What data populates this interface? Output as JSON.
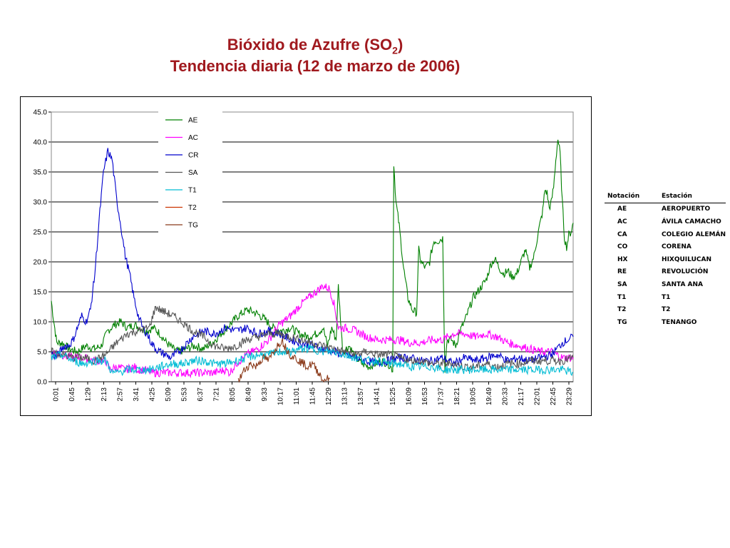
{
  "title": {
    "line1_main": "Bióxido de Azufre (SO",
    "line1_sub": "2",
    "line1_end": ")",
    "line2": "Tendencia diaria (12 de marzo de 2006)"
  },
  "chart_data": {
    "type": "line",
    "ylim": [
      0,
      45
    ],
    "yticks": [
      "0.0",
      "5.0",
      "10.0",
      "15.0",
      "20.0",
      "25.0",
      "30.0",
      "35.0",
      "40.0",
      "45.0"
    ],
    "xticks": [
      "0:01",
      "0:45",
      "1:29",
      "2:13",
      "2:57",
      "3:41",
      "4:25",
      "5:09",
      "5:53",
      "6:37",
      "7:21",
      "8:05",
      "8:49",
      "9:33",
      "10:17",
      "11:01",
      "11:45",
      "12:29",
      "13:13",
      "13:57",
      "14:41",
      "15:25",
      "16:09",
      "16:53",
      "17:37",
      "18:21",
      "19:05",
      "19:49",
      "20:33",
      "21:17",
      "22:01",
      "22:45",
      "23:29"
    ],
    "x_unit": "hours of day",
    "grid": "horizontal",
    "legend_position": "inside-top-left",
    "series": [
      {
        "name": "AE",
        "color": "#008000",
        "x": [
          0.0,
          0.1,
          0.25,
          0.5,
          0.8,
          1.2,
          1.6,
          2.0,
          2.3,
          2.6,
          2.9,
          3.2,
          3.5,
          3.8,
          4.1,
          4.4,
          4.7,
          5.0,
          5.3,
          5.6,
          5.9,
          6.2,
          6.6,
          7.0,
          7.4,
          7.8,
          8.2,
          8.6,
          9.0,
          9.4,
          9.8,
          10.2,
          10.6,
          11.0,
          11.4,
          11.8,
          12.2,
          12.5,
          12.7,
          12.9,
          13.1,
          13.2,
          13.4,
          13.7,
          14.0,
          14.3,
          14.6,
          14.9,
          15.2,
          15.5,
          15.7,
          15.75,
          15.85,
          16.0,
          16.2,
          16.4,
          16.6,
          16.8,
          16.9,
          17.0,
          17.2,
          17.4,
          17.5,
          17.6,
          17.8,
          18.0,
          18.1,
          18.2,
          18.4,
          18.6,
          18.8,
          19.0,
          19.2,
          19.4,
          19.6,
          19.8,
          20.0,
          20.2,
          20.4,
          20.6,
          20.8,
          21.0,
          21.2,
          21.4,
          21.6,
          21.8,
          22.0,
          22.2,
          22.4,
          22.6,
          22.7,
          22.8,
          22.9,
          23.0,
          23.1,
          23.2,
          23.3,
          23.4,
          23.5,
          23.6,
          23.7,
          23.8,
          23.9,
          24.0
        ],
        "y": [
          13.5,
          10.5,
          6.5,
          6.5,
          5.5,
          5.0,
          6.0,
          5.5,
          6.0,
          8.5,
          9.5,
          10.0,
          9.0,
          9.5,
          9.0,
          8.5,
          9.0,
          8.0,
          6.5,
          5.5,
          5.0,
          5.5,
          6.0,
          5.5,
          6.5,
          8.0,
          9.5,
          11.0,
          12.0,
          11.5,
          10.5,
          9.0,
          8.5,
          9.0,
          8.0,
          7.5,
          8.0,
          9.0,
          6.0,
          9.0,
          7.0,
          16.0,
          5.0,
          6.0,
          4.0,
          3.0,
          2.5,
          3.0,
          3.5,
          3.0,
          2.0,
          36.5,
          30.0,
          26.0,
          19.0,
          14.0,
          12.0,
          11.5,
          22.0,
          20.0,
          19.0,
          20.0,
          22.0,
          23.5,
          23.5,
          24.0,
          2.0,
          7.0,
          7.0,
          6.0,
          8.5,
          10.0,
          12.0,
          14.0,
          15.0,
          16.0,
          17.0,
          19.5,
          20.5,
          19.0,
          18.0,
          18.5,
          17.5,
          18.0,
          20.0,
          22.0,
          19.0,
          21.0,
          25.0,
          28.5,
          32.0,
          31.5,
          29.0,
          30.0,
          32.5,
          37.0,
          40.5,
          38.0,
          30.0,
          24.0,
          22.5,
          24.5,
          25.0,
          26.5
        ]
      },
      {
        "name": "AC",
        "color": "#ff00ff",
        "x": [
          0.0,
          0.5,
          1.0,
          1.5,
          2.0,
          2.5,
          2.7,
          3.0,
          3.4,
          3.8,
          4.0,
          4.3,
          4.6,
          5.0,
          5.5,
          6.0,
          6.5,
          7.0,
          7.5,
          8.0,
          8.2,
          8.5,
          9.0,
          9.5,
          10.0,
          10.5,
          11.0,
          11.5,
          12.0,
          12.5,
          12.8,
          13.0,
          13.2,
          13.5,
          14.0,
          14.5,
          15.0,
          15.5,
          16.0,
          16.5,
          17.0,
          17.5,
          18.0,
          18.5,
          19.0,
          19.5,
          20.0,
          20.5,
          21.0,
          21.5,
          22.0,
          22.5,
          23.0,
          23.5,
          24.0
        ],
        "y": [
          5.0,
          4.5,
          4.0,
          4.0,
          3.5,
          3.5,
          2.0,
          2.5,
          2.0,
          2.5,
          2.0,
          2.0,
          1.5,
          1.5,
          1.5,
          1.5,
          1.5,
          1.5,
          1.5,
          2.0,
          1.5,
          3.0,
          4.5,
          5.5,
          7.0,
          9.5,
          11.0,
          13.0,
          14.5,
          16.0,
          15.5,
          13.0,
          9.0,
          9.0,
          8.5,
          7.5,
          7.0,
          7.0,
          7.0,
          6.5,
          6.5,
          7.0,
          7.0,
          8.0,
          8.0,
          7.5,
          8.0,
          7.5,
          6.5,
          6.0,
          5.5,
          5.0,
          5.0,
          4.0,
          4.0
        ]
      },
      {
        "name": "CR",
        "color": "#0000cd",
        "x": [
          0.0,
          0.2,
          0.4,
          0.6,
          0.8,
          1.0,
          1.2,
          1.4,
          1.6,
          1.8,
          2.0,
          2.2,
          2.4,
          2.6,
          2.8,
          3.0,
          3.2,
          3.4,
          3.6,
          3.8,
          4.0,
          4.2,
          4.4,
          4.6,
          4.8,
          5.0,
          5.5,
          6.0,
          6.5,
          7.0,
          7.5,
          8.0,
          8.5,
          9.0,
          9.5,
          10.0,
          10.5,
          11.0,
          11.5,
          12.0,
          12.5,
          13.0,
          13.5,
          14.0,
          14.5,
          15.0,
          15.5,
          16.0,
          16.5,
          17.0,
          17.5,
          18.0,
          18.5,
          19.0,
          19.5,
          20.0,
          20.5,
          21.0,
          21.5,
          22.0,
          22.5,
          23.0,
          23.5,
          24.0
        ],
        "y": [
          5.0,
          4.0,
          5.0,
          6.0,
          6.0,
          7.0,
          9.0,
          11.0,
          10.0,
          12.0,
          18.0,
          27.0,
          35.0,
          38.5,
          37.0,
          30.5,
          26.0,
          21.0,
          18.0,
          14.0,
          11.0,
          9.0,
          8.0,
          6.5,
          5.5,
          5.0,
          4.0,
          5.5,
          7.5,
          8.5,
          8.0,
          9.0,
          8.5,
          9.0,
          8.0,
          8.5,
          8.0,
          7.0,
          6.5,
          6.0,
          5.5,
          5.0,
          4.5,
          4.0,
          3.5,
          3.0,
          3.5,
          4.0,
          4.0,
          3.5,
          3.5,
          4.0,
          3.0,
          4.0,
          3.5,
          4.0,
          4.5,
          3.5,
          4.0,
          3.5,
          4.0,
          4.5,
          6.5,
          7.5
        ]
      },
      {
        "name": "SA",
        "color": "#555555",
        "x": [
          0.0,
          0.5,
          1.0,
          1.5,
          2.0,
          2.5,
          3.0,
          3.5,
          4.0,
          4.5,
          4.8,
          5.0,
          5.3,
          5.6,
          6.0,
          6.5,
          7.0,
          7.5,
          8.0,
          8.5,
          9.0,
          9.5,
          10.0,
          10.5,
          11.0,
          11.5,
          12.0,
          12.5,
          13.0,
          13.5,
          14.0,
          14.5,
          15.0,
          15.5,
          16.0,
          16.5,
          17.0,
          17.5,
          18.0,
          18.5,
          19.0,
          19.5,
          20.0,
          20.5,
          21.0,
          21.5,
          22.0,
          22.5,
          23.0,
          23.5,
          24.0
        ],
        "y": [
          5.0,
          4.5,
          4.0,
          4.0,
          3.5,
          4.5,
          6.5,
          8.0,
          8.5,
          9.0,
          12.5,
          12.0,
          11.5,
          11.0,
          10.0,
          8.5,
          7.5,
          6.0,
          5.5,
          6.0,
          7.0,
          7.5,
          8.0,
          8.0,
          7.5,
          7.0,
          6.5,
          6.0,
          5.5,
          5.0,
          4.5,
          5.0,
          4.5,
          4.5,
          4.0,
          3.5,
          3.5,
          3.0,
          3.0,
          3.0,
          2.5,
          2.5,
          3.0,
          2.5,
          3.0,
          3.0,
          3.5,
          3.5,
          3.5,
          3.5,
          4.0
        ]
      },
      {
        "name": "T1",
        "color": "#00bcd4",
        "x": [
          0.0,
          0.5,
          1.0,
          1.5,
          2.0,
          2.5,
          2.8,
          3.0,
          3.5,
          4.0,
          4.5,
          5.0,
          5.5,
          6.0,
          6.5,
          7.0,
          7.5,
          8.0,
          8.5,
          9.0,
          9.5,
          10.0,
          10.5,
          11.0,
          11.5,
          12.0,
          12.5,
          13.0,
          13.5,
          14.0,
          14.5,
          15.0,
          15.5,
          16.0,
          16.5,
          17.0,
          17.5,
          18.0,
          18.5,
          19.0,
          19.5,
          20.0,
          20.5,
          21.0,
          21.5,
          22.0,
          22.5,
          23.0,
          23.5,
          24.0
        ],
        "y": [
          4.0,
          4.5,
          3.5,
          3.0,
          3.5,
          3.5,
          1.5,
          1.5,
          2.0,
          2.0,
          2.0,
          2.5,
          3.0,
          3.0,
          3.5,
          3.5,
          3.0,
          3.0,
          3.5,
          4.0,
          4.5,
          4.5,
          5.0,
          5.0,
          5.5,
          5.5,
          5.0,
          5.0,
          4.5,
          4.0,
          3.5,
          3.5,
          3.0,
          3.0,
          2.5,
          2.5,
          2.5,
          2.0,
          2.0,
          2.0,
          2.0,
          2.0,
          2.0,
          2.0,
          2.0,
          2.0,
          2.0,
          2.0,
          2.0,
          1.5
        ]
      },
      {
        "name": "T2",
        "color": "#cc3300",
        "x": [],
        "y": []
      },
      {
        "name": "TG",
        "color": "#8b3a1a",
        "x": [
          8.6,
          8.8,
          9.0,
          9.2,
          9.4,
          9.6,
          9.8,
          10.0,
          10.2,
          10.4,
          10.6,
          10.8,
          11.0,
          11.2,
          11.4,
          11.6,
          11.8,
          12.0,
          12.2,
          12.4,
          12.5,
          12.6,
          12.8
        ],
        "y": [
          0.0,
          1.5,
          2.5,
          3.0,
          2.5,
          3.5,
          4.0,
          3.5,
          5.0,
          6.0,
          7.0,
          5.5,
          4.5,
          4.0,
          3.5,
          3.0,
          2.5,
          3.0,
          2.0,
          1.0,
          0.0,
          0.5,
          0.5
        ]
      }
    ]
  },
  "notation_table": {
    "headers": [
      "Notación",
      "Estación"
    ],
    "rows": [
      [
        "AE",
        "AEROPUERTO"
      ],
      [
        "AC",
        "ÁVILA CAMACHO"
      ],
      [
        "CA",
        "COLEGIO ALEMÁN"
      ],
      [
        "CO",
        "CORENA"
      ],
      [
        "HX",
        "HIXQUILUCAN"
      ],
      [
        "RE",
        "REVOLUCIÓN"
      ],
      [
        "SA",
        "SANTA ANA"
      ],
      [
        "T1",
        "T1"
      ],
      [
        "T2",
        "T2"
      ],
      [
        "TG",
        "TENANGO"
      ]
    ]
  }
}
